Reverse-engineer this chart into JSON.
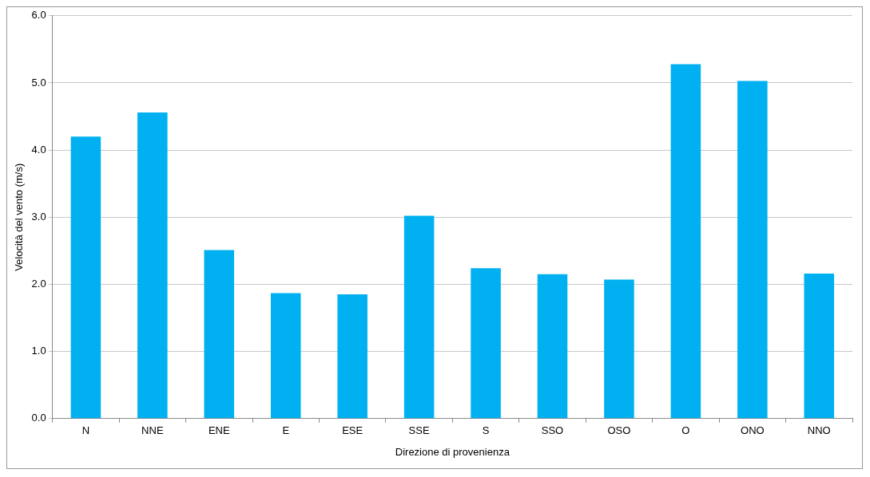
{
  "chart_data": {
    "type": "bar",
    "xlabel": "Direzione di provenienza",
    "ylabel": "Velocità del vento (m/s)",
    "categories": [
      "N",
      "NNE",
      "ENE",
      "E",
      "ESE",
      "SSE",
      "S",
      "SSO",
      "OSO",
      "O",
      "ONO",
      "NNO"
    ],
    "values": [
      4.2,
      4.56,
      2.51,
      1.87,
      1.85,
      3.02,
      2.24,
      2.15,
      2.07,
      5.28,
      5.03,
      2.16
    ],
    "color": "#00b0f0",
    "ylim": [
      0,
      6
    ],
    "yticks": [
      {
        "value": 0,
        "label": "0.0"
      },
      {
        "value": 1,
        "label": "1.0"
      },
      {
        "value": 2,
        "label": "2.0"
      },
      {
        "value": 3,
        "label": "3.0"
      },
      {
        "value": 4,
        "label": "4.0"
      },
      {
        "value": 5,
        "label": "5.0"
      },
      {
        "value": 6,
        "label": "6.0"
      }
    ],
    "grid": "y"
  }
}
